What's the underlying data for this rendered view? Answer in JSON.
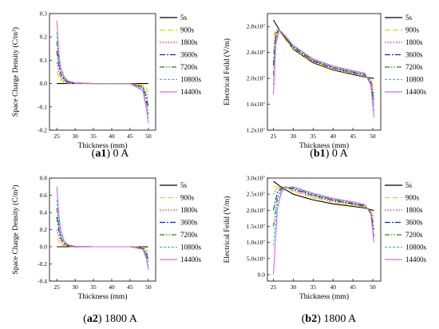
{
  "captions": [
    {
      "id": "a1",
      "current": "0 A"
    },
    {
      "id": "b1",
      "current": "0 A"
    },
    {
      "id": "a2",
      "current": "1800 A"
    },
    {
      "id": "b2",
      "current": "1800 A"
    }
  ],
  "series_style": [
    {
      "name": "5s",
      "color": "#000000",
      "dash": ""
    },
    {
      "name": "900s",
      "color": "#e6d600",
      "dash": "7,3"
    },
    {
      "name": "1800s",
      "color": "#e0304a",
      "dash": "1.5,2"
    },
    {
      "name": "3600s",
      "color": "#1f2d8f",
      "dash": "7,2,2,2"
    },
    {
      "name": "7200s",
      "color": "#2e7d22",
      "dash": "6,2,1.5,2,1.5,2"
    },
    {
      "name": "10800s",
      "color": "#19c6dd",
      "dash": "3,2"
    },
    {
      "name": "14400s",
      "color": "#e066e0",
      "dash": ""
    }
  ],
  "chart_data": [
    {
      "type": "line",
      "ylabel": "Space Charge Density (C/m³)",
      "xlabel": "Thickness (mm)",
      "xlim": [
        23,
        52
      ],
      "ylim": [
        -0.2,
        0.3
      ],
      "xticks": [
        25,
        30,
        35,
        40,
        45,
        50
      ],
      "yticks": [
        -0.2,
        -0.1,
        0.0,
        0.1,
        0.2,
        0.3
      ],
      "ytick_labels": [
        "-0.2",
        "-0.1",
        "0.0",
        "0.1",
        "0.2",
        "0.3"
      ],
      "legend_names": [
        "5s",
        "900s",
        "1800s",
        "3600s",
        "7200s",
        "10800s",
        "14400s"
      ],
      "series": [
        {
          "name": "5s",
          "x": [
            25,
            25.5,
            27,
            30,
            35,
            40,
            45,
            49,
            49.8,
            50
          ],
          "y": [
            0.0,
            0.0,
            0.0,
            0.0,
            0.0,
            0.0,
            0.0,
            0.0,
            0.0,
            0.0
          ]
        },
        {
          "name": "900s",
          "x": [
            25,
            25.5,
            26,
            27,
            28,
            30,
            35,
            45,
            48.5,
            49.5,
            50
          ],
          "y": [
            0.05,
            0.03,
            0.015,
            0.005,
            0.002,
            0.0,
            0.0,
            0.0,
            -0.005,
            -0.02,
            -0.04
          ]
        },
        {
          "name": "1800s",
          "x": [
            25,
            25.5,
            26,
            27,
            28,
            30,
            35,
            45,
            48.5,
            49.5,
            50
          ],
          "y": [
            0.09,
            0.05,
            0.025,
            0.01,
            0.004,
            0.001,
            0.0,
            0.0,
            -0.01,
            -0.04,
            -0.07
          ]
        },
        {
          "name": "3600s",
          "x": [
            25,
            25.5,
            26,
            27,
            28,
            30,
            35,
            45,
            48.5,
            49.5,
            50
          ],
          "y": [
            0.14,
            0.08,
            0.04,
            0.015,
            0.006,
            0.002,
            0.0,
            0.0,
            -0.015,
            -0.06,
            -0.1
          ]
        },
        {
          "name": "7200s",
          "x": [
            25,
            25.5,
            26,
            27,
            28,
            30,
            35,
            45,
            48.5,
            49.5,
            50
          ],
          "y": [
            0.18,
            0.1,
            0.05,
            0.02,
            0.008,
            0.002,
            0.0,
            0.0,
            -0.02,
            -0.08,
            -0.13
          ]
        },
        {
          "name": "10800s",
          "x": [
            25,
            25.5,
            26,
            27,
            28,
            30,
            35,
            45,
            48.5,
            49.5,
            50
          ],
          "y": [
            0.22,
            0.12,
            0.06,
            0.025,
            0.01,
            0.003,
            0.0,
            0.0,
            -0.025,
            -0.1,
            -0.15
          ]
        },
        {
          "name": "14400s",
          "x": [
            25,
            25.5,
            26,
            27,
            28,
            30,
            35,
            45,
            48.5,
            49.5,
            50
          ],
          "y": [
            0.27,
            0.14,
            0.07,
            0.03,
            0.012,
            0.003,
            0.0,
            0.0,
            -0.03,
            -0.11,
            -0.17
          ]
        }
      ]
    },
    {
      "type": "line",
      "ylabel": "Electrical Feild (V/m)",
      "xlabel": "Thickness (mm)",
      "xlim": [
        23.5,
        52
      ],
      "ylim": [
        12000000,
        30000000
      ],
      "xticks": [
        25,
        30,
        35,
        40,
        45,
        50
      ],
      "yticks": [
        12000000,
        16000000,
        20000000,
        24000000,
        28000000
      ],
      "ytick_labels": [
        "1.2x10⁷",
        "1.6x10⁷",
        "2.0x10⁷",
        "2.4x10⁷",
        "2.8x10⁷"
      ],
      "legend_names": [
        "5s",
        "900s",
        "1800s",
        "3600s",
        "7200s",
        "10800",
        "14400s"
      ],
      "series": [
        {
          "name": "5s",
          "x": [
            25,
            27,
            30,
            35,
            40,
            45,
            48,
            50,
            50.3
          ],
          "y": [
            29000000,
            27000000,
            24500000,
            22400000,
            21300000,
            20600000,
            20200000,
            20000000,
            20000000
          ]
        },
        {
          "name": "900s",
          "x": [
            25,
            25.6,
            26.5,
            28,
            30,
            35,
            40,
            45,
            48,
            49.5,
            50.3
          ],
          "y": [
            26500000,
            27600000,
            27400000,
            26000000,
            24600000,
            22500000,
            21400000,
            20700000,
            20300000,
            19800000,
            18500000
          ]
        },
        {
          "name": "1800s",
          "x": [
            25,
            25.6,
            26.5,
            28,
            30,
            35,
            40,
            45,
            48,
            49.5,
            50.3
          ],
          "y": [
            24000000,
            27300000,
            27500000,
            26200000,
            24700000,
            22600000,
            21500000,
            20800000,
            20400000,
            19700000,
            17500000
          ]
        },
        {
          "name": "3600s",
          "x": [
            25,
            25.6,
            26.5,
            28,
            30,
            35,
            40,
            45,
            48,
            49.5,
            50.3
          ],
          "y": [
            22000000,
            26800000,
            27500000,
            26300000,
            24800000,
            22700000,
            21600000,
            20900000,
            20500000,
            19500000,
            16500000
          ]
        },
        {
          "name": "7200s",
          "x": [
            25,
            25.6,
            26.5,
            28,
            30,
            35,
            40,
            45,
            48,
            49.5,
            50.3
          ],
          "y": [
            20500000,
            26200000,
            27500000,
            26400000,
            24900000,
            22800000,
            21700000,
            21000000,
            20600000,
            19300000,
            15800000
          ]
        },
        {
          "name": "10800",
          "x": [
            25,
            25.6,
            26.5,
            28,
            30,
            35,
            40,
            45,
            48,
            49.5,
            50.3
          ],
          "y": [
            19000000,
            25700000,
            27500000,
            26500000,
            25000000,
            22900000,
            21800000,
            21100000,
            20700000,
            19200000,
            15000000
          ]
        },
        {
          "name": "14400s",
          "x": [
            25,
            25.6,
            26.5,
            28,
            30,
            35,
            40,
            45,
            48,
            49.5,
            50.3
          ],
          "y": [
            17500000,
            25200000,
            27500000,
            26600000,
            25100000,
            23000000,
            21900000,
            21200000,
            20800000,
            19000000,
            14000000
          ]
        }
      ]
    },
    {
      "type": "line",
      "ylabel": "Space Charge Density (C/m³)",
      "xlabel": "Thickness (mm)",
      "xlim": [
        23,
        52
      ],
      "ylim": [
        -0.4,
        0.8
      ],
      "xticks": [
        25,
        30,
        35,
        40,
        45,
        50
      ],
      "yticks": [
        -0.4,
        -0.2,
        0.0,
        0.2,
        0.4,
        0.6,
        0.8
      ],
      "ytick_labels": [
        "-0.4",
        "-0.2",
        "0.0",
        "0.2",
        "0.4",
        "0.6",
        "0.8"
      ],
      "legend_names": [
        "5s",
        "900s",
        "1800s",
        "3600s",
        "7200s",
        "10800s",
        "14400s"
      ],
      "series": [
        {
          "name": "5s",
          "x": [
            25,
            25.5,
            27,
            30,
            35,
            40,
            45,
            49,
            49.8,
            50
          ],
          "y": [
            0.0,
            0.0,
            0.0,
            0.0,
            0.0,
            0.0,
            0.0,
            0.0,
            0.0,
            0.0
          ]
        },
        {
          "name": "900s",
          "x": [
            25,
            25.5,
            26,
            27,
            28,
            30,
            35,
            45,
            48.5,
            49.5,
            50
          ],
          "y": [
            0.1,
            0.06,
            0.03,
            0.01,
            0.004,
            0.001,
            0.0,
            0.0,
            -0.005,
            -0.02,
            -0.05
          ]
        },
        {
          "name": "1800s",
          "x": [
            25,
            25.5,
            26,
            27,
            28,
            30,
            35,
            45,
            48.5,
            49.5,
            50
          ],
          "y": [
            0.2,
            0.12,
            0.06,
            0.02,
            0.008,
            0.002,
            0.0,
            0.0,
            -0.01,
            -0.05,
            -0.1
          ]
        },
        {
          "name": "3600s",
          "x": [
            25,
            25.5,
            26,
            27,
            28,
            30,
            35,
            45,
            48.5,
            49.5,
            50
          ],
          "y": [
            0.35,
            0.2,
            0.1,
            0.035,
            0.012,
            0.003,
            0.0,
            0.0,
            -0.015,
            -0.08,
            -0.15
          ]
        },
        {
          "name": "7200s",
          "x": [
            25,
            25.5,
            26,
            27,
            28,
            30,
            35,
            45,
            48.5,
            49.5,
            50
          ],
          "y": [
            0.45,
            0.26,
            0.13,
            0.045,
            0.016,
            0.004,
            0.0,
            0.0,
            -0.02,
            -0.1,
            -0.2
          ]
        },
        {
          "name": "10800s",
          "x": [
            25,
            25.5,
            26,
            27,
            28,
            30,
            35,
            45,
            48.5,
            49.5,
            50
          ],
          "y": [
            0.55,
            0.32,
            0.16,
            0.055,
            0.02,
            0.005,
            0.0,
            0.0,
            -0.025,
            -0.12,
            -0.24
          ]
        },
        {
          "name": "14400s",
          "x": [
            25,
            25.5,
            26,
            27,
            28,
            30,
            35,
            45,
            48.5,
            49.5,
            50
          ],
          "y": [
            0.7,
            0.4,
            0.2,
            0.07,
            0.025,
            0.006,
            0.0,
            0.0,
            -0.03,
            -0.14,
            -0.27
          ]
        }
      ]
    },
    {
      "type": "line",
      "ylabel": "Electrical Feild (V/m)",
      "xlabel": "Thickness (mm)",
      "xlim": [
        23.5,
        52
      ],
      "ylim": [
        -2000000,
        30000000
      ],
      "xticks": [
        25,
        30,
        35,
        40,
        45,
        50
      ],
      "yticks": [
        0,
        5000000,
        10000000,
        15000000,
        20000000,
        25000000,
        30000000
      ],
      "ytick_labels": [
        "0.0",
        "5.0x10⁶",
        "1.0x10⁷",
        "1.5x10⁷",
        "2.0x10⁷",
        "2.5x10⁷",
        "3.0x10⁷"
      ],
      "legend_names": [
        "5s",
        "900s",
        "1800s",
        "3600s",
        "7200s",
        "10800s",
        "14400s"
      ],
      "series": [
        {
          "name": "5s",
          "x": [
            25,
            27,
            30,
            35,
            40,
            45,
            48,
            50,
            50.3
          ],
          "y": [
            29000000,
            27200000,
            25000000,
            23200000,
            22000000,
            21200000,
            20700000,
            20000000,
            20000000
          ]
        },
        {
          "name": "900s",
          "x": [
            25,
            26,
            27,
            28,
            30,
            35,
            40,
            45,
            48,
            49.5,
            50.3
          ],
          "y": [
            27500000,
            27300000,
            27200000,
            27000000,
            25800000,
            23800000,
            22500000,
            21500000,
            21000000,
            19800000,
            18000000
          ]
        },
        {
          "name": "1800s",
          "x": [
            25,
            26,
            27,
            28,
            30,
            35,
            40,
            45,
            48,
            49.5,
            50.3
          ],
          "y": [
            25000000,
            26800000,
            27300000,
            27200000,
            26200000,
            24200000,
            22800000,
            21800000,
            21200000,
            19600000,
            16000000
          ]
        },
        {
          "name": "3600s",
          "x": [
            25,
            26,
            27,
            28,
            30,
            35,
            40,
            45,
            48,
            49.5,
            50.3
          ],
          "y": [
            20000000,
            25500000,
            27000000,
            27300000,
            26600000,
            24600000,
            23100000,
            22000000,
            21300000,
            19400000,
            14000000
          ]
        },
        {
          "name": "7200s",
          "x": [
            25,
            26,
            27,
            28,
            30,
            35,
            40,
            45,
            48,
            49.5,
            50.3
          ],
          "y": [
            15000000,
            24000000,
            26500000,
            27300000,
            26900000,
            24900000,
            23300000,
            22200000,
            21500000,
            19200000,
            12000000
          ]
        },
        {
          "name": "10800s",
          "x": [
            25,
            26,
            27,
            28,
            30,
            35,
            40,
            45,
            48,
            49.5,
            50.3
          ],
          "y": [
            9000000,
            22500000,
            26000000,
            27200000,
            27100000,
            25100000,
            23500000,
            22400000,
            21600000,
            19000000,
            11000000
          ]
        },
        {
          "name": "14400s",
          "x": [
            25,
            26,
            27,
            28,
            30,
            35,
            40,
            45,
            48,
            49.5,
            50.3
          ],
          "y": [
            0,
            20500000,
            25500000,
            27000000,
            27300000,
            25300000,
            23700000,
            22600000,
            21800000,
            18800000,
            10000000
          ]
        }
      ]
    }
  ]
}
